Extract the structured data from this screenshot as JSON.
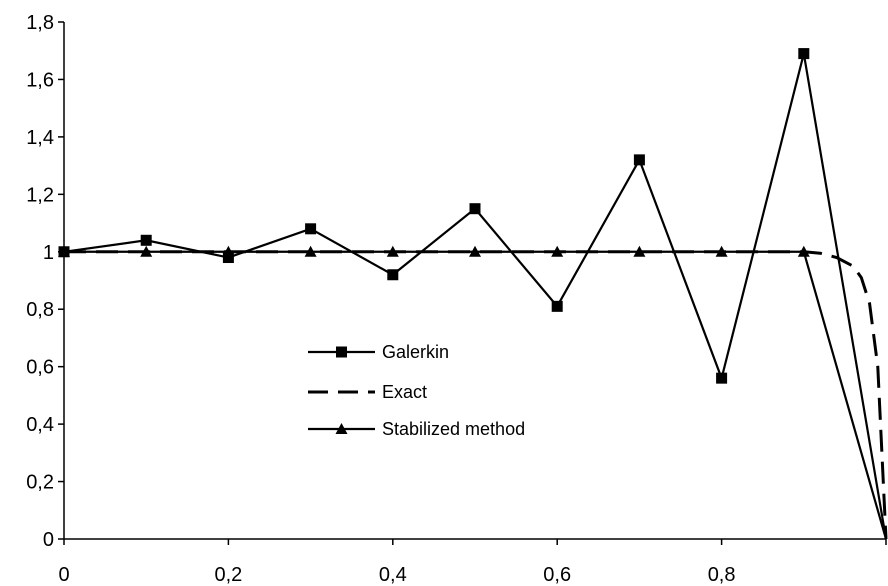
{
  "chart_data": {
    "type": "line",
    "title": "",
    "xlabel": "",
    "ylabel": "",
    "xlim": [
      0,
      1
    ],
    "ylim": [
      0,
      1.8
    ],
    "x_ticks": [
      0,
      0.2,
      0.4,
      0.6,
      0.8
    ],
    "x_tick_labels": [
      "0",
      "0,2",
      "0,4",
      "0,6",
      "0,8"
    ],
    "y_ticks": [
      0,
      0.2,
      0.4,
      0.6,
      0.8,
      1,
      1.2,
      1.4,
      1.6,
      1.8
    ],
    "y_tick_labels": [
      "0",
      "0,2",
      "0,4",
      "0,6",
      "0,8",
      "1",
      "1,2",
      "1,4",
      "1,6",
      "1,8"
    ],
    "grid": false,
    "legend_position": "center-left",
    "series": [
      {
        "name": "Galerkin",
        "style": "solid",
        "marker": "square",
        "color": "#000000",
        "x": [
          0,
          0.1,
          0.2,
          0.3,
          0.4,
          0.5,
          0.6,
          0.7,
          0.8,
          0.9,
          1.0
        ],
        "y": [
          1.0,
          1.04,
          0.98,
          1.08,
          0.92,
          1.15,
          0.81,
          1.32,
          0.56,
          1.69,
          0.0
        ]
      },
      {
        "name": "Exact",
        "style": "dashed",
        "marker": "none",
        "color": "#000000",
        "x": [
          0,
          0.9,
          0.92,
          0.94,
          0.96,
          0.97,
          0.98,
          0.99,
          1.0
        ],
        "y": [
          1.0,
          1.0,
          0.995,
          0.98,
          0.95,
          0.91,
          0.82,
          0.6,
          0.0
        ]
      },
      {
        "name": "Stabilized method",
        "style": "solid",
        "marker": "triangle",
        "color": "#000000",
        "x": [
          0,
          0.1,
          0.2,
          0.3,
          0.4,
          0.5,
          0.6,
          0.7,
          0.8,
          0.9,
          1.0
        ],
        "y": [
          1.0,
          1.0,
          1.0,
          1.0,
          1.0,
          1.0,
          1.0,
          1.0,
          1.0,
          1.0,
          0.0
        ]
      }
    ]
  }
}
